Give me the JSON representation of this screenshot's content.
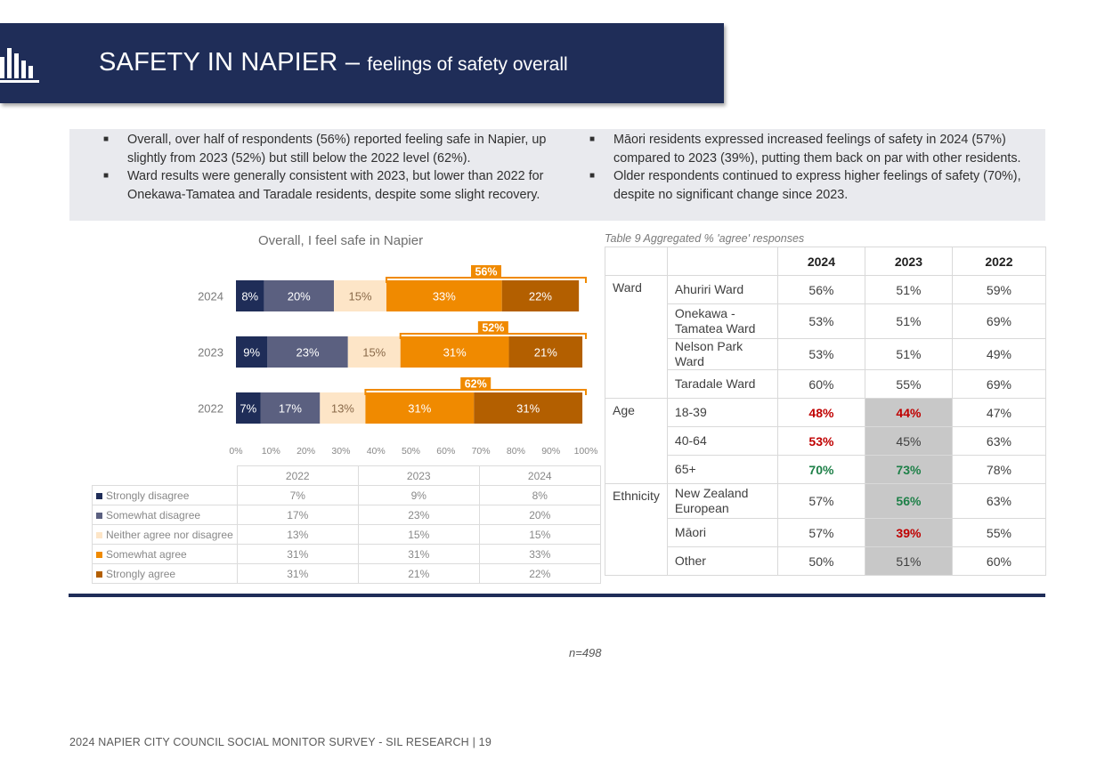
{
  "header": {
    "title_main": "SAFETY IN NAPIER",
    "title_dash": " – ",
    "title_sub": "feelings of safety overall"
  },
  "summary": {
    "left": [
      "Overall, over half of respondents (56%) reported feeling safe in Napier, up slightly from 2023 (52%) but still below the 2022 level (62%).",
      "Ward results were generally consistent with 2023, but lower than 2022 for Onekawa-Tamatea and Taradale residents, despite some slight recovery."
    ],
    "right": [
      "Māori residents expressed increased feelings of safety in 2024 (57%) compared to 2023 (39%), putting them back on par with other residents.",
      "Older respondents continued to express higher feelings of safety (70%), despite no significant change since 2023."
    ],
    "bullet_mark": "■"
  },
  "chart_data": {
    "type": "bar",
    "orientation": "horizontal-stacked-100",
    "title": "Overall, I feel safe in Napier",
    "categories": [
      "2024",
      "2023",
      "2022"
    ],
    "series": [
      {
        "name": "Strongly disagree",
        "values": [
          8,
          9,
          7
        ],
        "color": "#1f2d58"
      },
      {
        "name": "Somewhat disagree",
        "values": [
          20,
          23,
          17
        ],
        "color": "#5b6080"
      },
      {
        "name": "Neither agree nor disagree",
        "values": [
          15,
          15,
          13
        ],
        "color": "#fde5c7"
      },
      {
        "name": "Somewhat agree",
        "values": [
          33,
          31,
          31
        ],
        "color": "#f08a00"
      },
      {
        "name": "Strongly agree",
        "values": [
          22,
          21,
          31
        ],
        "color": "#b35f00"
      }
    ],
    "agree_totals": [
      56,
      52,
      62
    ],
    "xlim": [
      0,
      100
    ],
    "xticks": [
      "0%",
      "10%",
      "20%",
      "30%",
      "40%",
      "50%",
      "60%",
      "70%",
      "80%",
      "90%",
      "100%"
    ],
    "data_table": {
      "years": [
        "2022",
        "2023",
        "2024"
      ],
      "rows": [
        {
          "label": "Strongly disagree",
          "values": [
            "7%",
            "9%",
            "8%"
          ]
        },
        {
          "label": "Somewhat disagree",
          "values": [
            "17%",
            "23%",
            "20%"
          ]
        },
        {
          "label": "Neither agree nor disagree",
          "values": [
            "13%",
            "15%",
            "15%"
          ]
        },
        {
          "label": "Somewhat agree",
          "values": [
            "31%",
            "31%",
            "33%"
          ]
        },
        {
          "label": "Strongly agree",
          "values": [
            "31%",
            "21%",
            "22%"
          ]
        }
      ]
    }
  },
  "table9": {
    "caption": "Table 9 Aggregated % 'agree' responses",
    "years": [
      "2024",
      "2023",
      "2022"
    ],
    "groups": [
      {
        "name": "Ward",
        "rows": [
          {
            "label": "Ahuriri Ward",
            "values": [
              "56%",
              "51%",
              "59%"
            ],
            "styles": [
              "",
              "",
              ""
            ],
            "shade": false
          },
          {
            "label": "Onekawa - Tamatea Ward",
            "values": [
              "53%",
              "51%",
              "69%"
            ],
            "styles": [
              "",
              "",
              ""
            ],
            "shade": false
          },
          {
            "label": "Nelson Park Ward",
            "values": [
              "53%",
              "51%",
              "49%"
            ],
            "styles": [
              "",
              "",
              ""
            ],
            "shade": false
          },
          {
            "label": "Taradale Ward",
            "values": [
              "60%",
              "55%",
              "69%"
            ],
            "styles": [
              "",
              "",
              ""
            ],
            "shade": false
          }
        ]
      },
      {
        "name": "Age",
        "rows": [
          {
            "label": "18-39",
            "values": [
              "48%",
              "44%",
              "47%"
            ],
            "styles": [
              "red",
              "red",
              ""
            ],
            "shade": true
          },
          {
            "label": "40-64",
            "values": [
              "53%",
              "45%",
              "63%"
            ],
            "styles": [
              "red",
              "",
              ""
            ],
            "shade": true
          },
          {
            "label": "65+",
            "values": [
              "70%",
              "73%",
              "78%"
            ],
            "styles": [
              "green",
              "green",
              ""
            ],
            "shade": true
          }
        ]
      },
      {
        "name": "Ethnicity",
        "rows": [
          {
            "label": "New Zealand European",
            "values": [
              "57%",
              "56%",
              "63%"
            ],
            "styles": [
              "",
              "green",
              ""
            ],
            "shade": true
          },
          {
            "label": "Māori",
            "values": [
              "57%",
              "39%",
              "55%"
            ],
            "styles": [
              "",
              "red",
              ""
            ],
            "shade": true
          },
          {
            "label": "Other",
            "values": [
              "50%",
              "51%",
              "60%"
            ],
            "styles": [
              "",
              "",
              ""
            ],
            "shade": true
          }
        ]
      }
    ]
  },
  "note": "n=498",
  "footer": "2024 NAPIER CITY COUNCIL SOCIAL MONITOR SURVEY - SIL RESEARCH | 19"
}
